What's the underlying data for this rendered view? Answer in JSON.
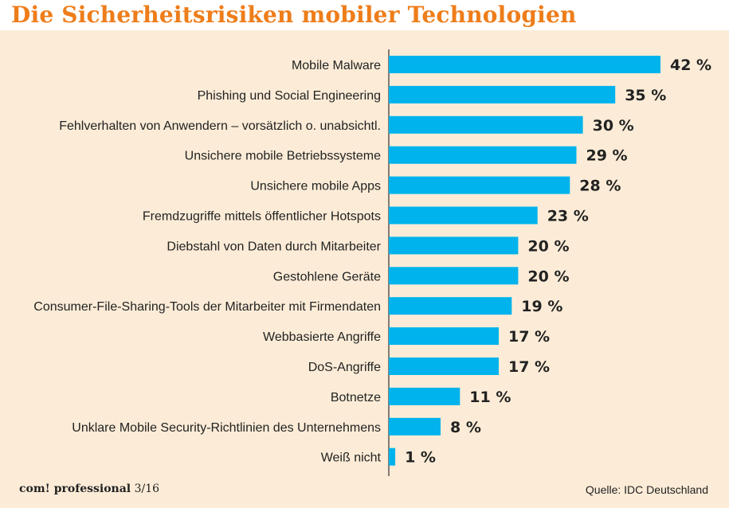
{
  "title": "Die Sicherheitsrisiken mobiler Technologien",
  "footer": {
    "publication": "com! professional",
    "issue": "3/16",
    "source": "Quelle: IDC Deutschland"
  },
  "colors": {
    "title": "#ee7d1a",
    "background": "#fcecd7",
    "bar": "#00b3ec",
    "axis": "#333333"
  },
  "chart_data": {
    "type": "bar",
    "orientation": "horizontal",
    "title": "Die Sicherheitsrisiken mobiler Technologien",
    "xlabel": "",
    "ylabel": "",
    "unit": "%",
    "xlim": [
      0,
      42
    ],
    "grid": false,
    "categories": [
      "Mobile Malware",
      "Phishing und Social Engineering",
      "Fehlverhalten von Anwendern – vorsätzlich o. unabsichtl.",
      "Unsichere mobile Betriebssysteme",
      "Unsichere mobile Apps",
      "Fremdzugriffe mittels öffentlicher Hotspots",
      "Diebstahl von Daten durch Mitarbeiter",
      "Gestohlene Geräte",
      "Consumer-File-Sharing-Tools der Mitarbeiter mit Firmendaten",
      "Webbasierte Angriffe",
      "DoS-Angriffe",
      "Botnetze",
      "Unklare Mobile Security-Richtlinien des Unternehmens",
      "Weiß nicht"
    ],
    "values": [
      42,
      35,
      30,
      29,
      28,
      23,
      20,
      20,
      19,
      17,
      17,
      11,
      8,
      1
    ],
    "value_labels": [
      "42 %",
      "35 %",
      "30 %",
      "29 %",
      "28 %",
      "23 %",
      "20 %",
      "20 %",
      "19 %",
      "17 %",
      "17 %",
      "11 %",
      "8 %",
      "1 %"
    ]
  }
}
